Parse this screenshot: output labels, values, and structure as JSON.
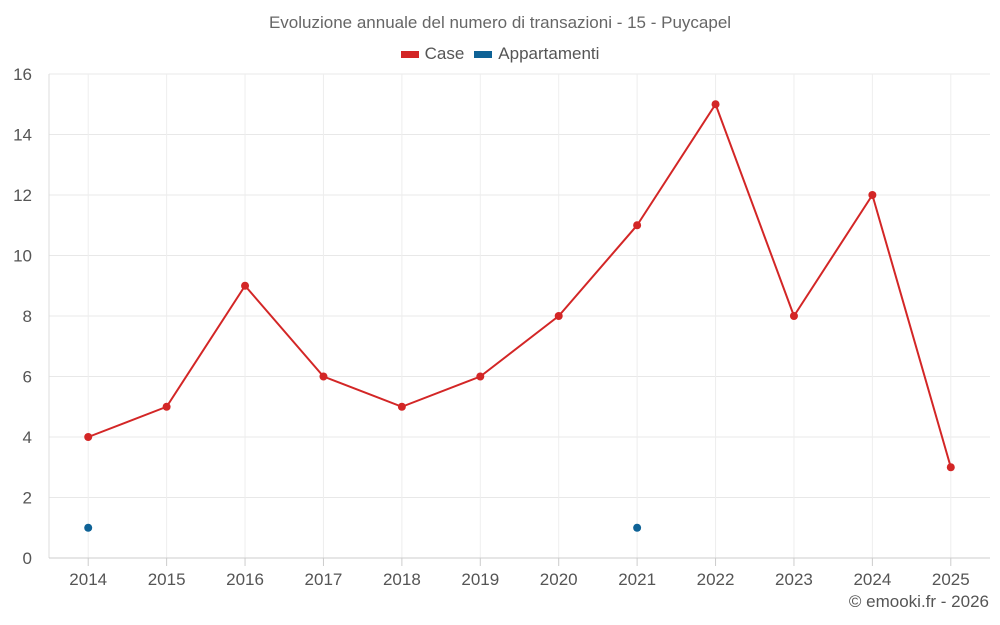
{
  "chart_data": {
    "type": "line",
    "title": "Evoluzione annuale del numero di transazioni - 15 - Puycapel",
    "categories": [
      "2014",
      "2015",
      "2016",
      "2017",
      "2018",
      "2019",
      "2020",
      "2021",
      "2022",
      "2023",
      "2024",
      "2025"
    ],
    "ylim": [
      0,
      16
    ],
    "yticks": [
      0,
      2,
      4,
      6,
      8,
      10,
      12,
      14,
      16
    ],
    "grid": true,
    "legend_position": "top-center",
    "series": [
      {
        "name": "Case",
        "color": "#d32626",
        "values": [
          4,
          5,
          9,
          6,
          5,
          6,
          8,
          11,
          15,
          8,
          12,
          3
        ]
      },
      {
        "name": "Appartamenti",
        "color": "#0e6296",
        "values": [
          1,
          null,
          null,
          null,
          null,
          null,
          null,
          1,
          null,
          null,
          null,
          null
        ]
      }
    ]
  },
  "credit": "© emooki.fr - 2026"
}
